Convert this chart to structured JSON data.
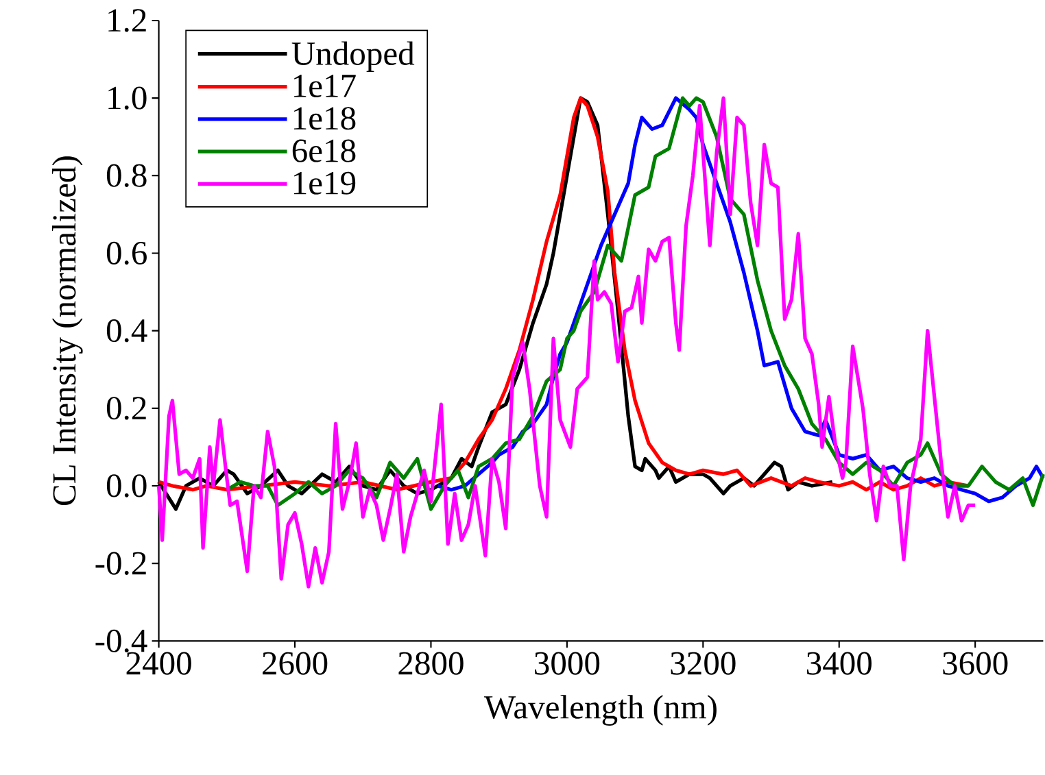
{
  "chart_data": {
    "type": "line",
    "xlabel": "Wavelength (nm)",
    "ylabel": "CL Intensity (normalized)",
    "xlim": [
      2400,
      3700
    ],
    "xticks": [
      2400,
      2600,
      2800,
      3000,
      3200,
      3400,
      3600
    ],
    "ylim": [
      -0.4,
      1.2
    ],
    "yticks": [
      {
        "value": -0.4,
        "label": "-0.4"
      },
      {
        "value": -0.2,
        "label": "-0.2"
      },
      {
        "value": 0,
        "label": "0.0"
      },
      {
        "value": 0.2,
        "label": "0.2"
      },
      {
        "value": 0.4,
        "label": "0.4"
      },
      {
        "value": 0.6,
        "label": "0.6"
      },
      {
        "value": 0.8,
        "label": "0.8"
      },
      {
        "value": 1.0,
        "label": "1.0"
      },
      {
        "value": 1.2,
        "label": "1.2"
      }
    ],
    "legend": "top left",
    "grid": false,
    "marker": "none",
    "line_style": "solid",
    "series": [
      {
        "name": "Undoped",
        "color": "#000000",
        "x": [
          2400,
          2425,
          2440,
          2460,
          2480,
          2500,
          2510,
          2530,
          2550,
          2575,
          2590,
          2610,
          2640,
          2660,
          2680,
          2700,
          2720,
          2740,
          2760,
          2780,
          2800,
          2830,
          2845,
          2860,
          2870,
          2890,
          2910,
          2930,
          2950,
          2970,
          2980,
          3000,
          3010,
          3020,
          3030,
          3045,
          3060,
          3075,
          3090,
          3100,
          3110,
          3115,
          3130,
          3135,
          3150,
          3160,
          3180,
          3200,
          3210,
          3230,
          3240,
          3260,
          3275,
          3290,
          3305,
          3315,
          3325,
          3340,
          3360,
          3390
        ],
        "values": [
          0.01,
          -0.06,
          0.0,
          0.02,
          0.0,
          0.04,
          0.03,
          -0.02,
          0.0,
          0.04,
          0.0,
          -0.02,
          0.03,
          0.01,
          0.05,
          0.0,
          -0.01,
          0.04,
          0.0,
          -0.02,
          -0.01,
          0.02,
          0.07,
          0.05,
          0.1,
          0.19,
          0.21,
          0.3,
          0.42,
          0.52,
          0.6,
          0.8,
          0.9,
          1.0,
          0.99,
          0.93,
          0.7,
          0.45,
          0.18,
          0.05,
          0.04,
          0.07,
          0.04,
          0.02,
          0.05,
          0.01,
          0.03,
          0.03,
          0.02,
          -0.02,
          0.0,
          0.02,
          0.0,
          0.03,
          0.06,
          0.05,
          -0.01,
          0.01,
          0.0,
          0.01
        ]
      },
      {
        "name": "1e17",
        "color": "#ff0000",
        "x": [
          2400,
          2420,
          2450,
          2470,
          2500,
          2550,
          2600,
          2650,
          2700,
          2750,
          2800,
          2830,
          2850,
          2870,
          2890,
          2910,
          2930,
          2950,
          2970,
          2990,
          3000,
          3010,
          3020,
          3030,
          3045,
          3060,
          3070,
          3085,
          3100,
          3120,
          3140,
          3160,
          3180,
          3200,
          3230,
          3250,
          3270,
          3300,
          3330,
          3350,
          3370,
          3400,
          3420,
          3440,
          3460,
          3480,
          3500,
          3520,
          3540,
          3560,
          3590
        ],
        "values": [
          0.01,
          0.0,
          -0.01,
          0.0,
          -0.01,
          0.0,
          0.01,
          0.0,
          0.01,
          -0.01,
          0.01,
          0.02,
          0.06,
          0.12,
          0.17,
          0.25,
          0.35,
          0.48,
          0.63,
          0.75,
          0.85,
          0.95,
          1.0,
          0.98,
          0.9,
          0.76,
          0.55,
          0.35,
          0.22,
          0.11,
          0.06,
          0.04,
          0.03,
          0.04,
          0.03,
          0.04,
          0.0,
          0.02,
          0.0,
          0.02,
          0.01,
          0.0,
          0.01,
          -0.01,
          0.01,
          -0.01,
          0.0,
          0.02,
          0.0,
          0.01,
          0.0
        ]
      },
      {
        "name": "1e18",
        "color": "#0000ff",
        "x": [
          2810,
          2830,
          2850,
          2870,
          2890,
          2900,
          2920,
          2935,
          2950,
          2970,
          2980,
          2990,
          3000,
          3010,
          3030,
          3050,
          3070,
          3090,
          3100,
          3110,
          3125,
          3140,
          3160,
          3180,
          3190,
          3200,
          3220,
          3240,
          3260,
          3280,
          3290,
          3310,
          3330,
          3350,
          3370,
          3380,
          3400,
          3420,
          3440,
          3460,
          3480,
          3500,
          3520,
          3540,
          3560,
          3580,
          3600,
          3620,
          3640,
          3660,
          3680,
          3690,
          3700
        ],
        "values": [
          0.0,
          -0.01,
          0.0,
          0.03,
          0.06,
          0.08,
          0.1,
          0.14,
          0.16,
          0.21,
          0.28,
          0.34,
          0.37,
          0.42,
          0.52,
          0.62,
          0.7,
          0.78,
          0.88,
          0.95,
          0.92,
          0.93,
          1.0,
          0.97,
          0.95,
          0.88,
          0.78,
          0.68,
          0.55,
          0.4,
          0.31,
          0.32,
          0.2,
          0.14,
          0.13,
          0.17,
          0.08,
          0.07,
          0.08,
          0.04,
          0.05,
          0.02,
          0.01,
          0.02,
          0.0,
          -0.01,
          -0.02,
          -0.04,
          -0.03,
          0.0,
          0.02,
          0.05,
          0.02
        ]
      },
      {
        "name": "6e18",
        "color": "#008000",
        "x": [
          2500,
          2520,
          2540,
          2560,
          2575,
          2600,
          2620,
          2640,
          2660,
          2680,
          2700,
          2720,
          2740,
          2760,
          2780,
          2800,
          2820,
          2840,
          2855,
          2870,
          2890,
          2910,
          2930,
          2950,
          2970,
          2990,
          3000,
          3010,
          3020,
          3040,
          3060,
          3080,
          3100,
          3120,
          3130,
          3150,
          3170,
          3180,
          3190,
          3200,
          3220,
          3240,
          3260,
          3280,
          3300,
          3320,
          3340,
          3360,
          3380,
          3400,
          3420,
          3440,
          3460,
          3480,
          3500,
          3520,
          3530,
          3550,
          3570,
          3590,
          3610,
          3630,
          3650,
          3670,
          3685,
          3700
        ],
        "values": [
          -0.01,
          0.01,
          0.0,
          0.0,
          -0.05,
          -0.02,
          0.01,
          -0.02,
          0.0,
          0.04,
          0.02,
          -0.03,
          0.06,
          0.02,
          0.07,
          -0.06,
          0.0,
          0.04,
          -0.03,
          0.05,
          0.07,
          0.11,
          0.12,
          0.18,
          0.27,
          0.3,
          0.38,
          0.4,
          0.45,
          0.5,
          0.62,
          0.58,
          0.75,
          0.77,
          0.85,
          0.87,
          1.0,
          0.98,
          1.0,
          0.99,
          0.9,
          0.74,
          0.7,
          0.53,
          0.4,
          0.31,
          0.25,
          0.16,
          0.12,
          0.06,
          0.03,
          0.06,
          0.04,
          0.0,
          0.06,
          0.08,
          0.11,
          0.03,
          0.0,
          0.0,
          0.05,
          0.01,
          -0.01,
          0.02,
          -0.05,
          0.03
        ]
      },
      {
        "name": "1e19",
        "color": "#ff00ff",
        "x": [
          2400,
          2405,
          2415,
          2420,
          2430,
          2440,
          2450,
          2460,
          2465,
          2475,
          2480,
          2490,
          2500,
          2505,
          2515,
          2530,
          2540,
          2550,
          2560,
          2570,
          2580,
          2590,
          2600,
          2610,
          2620,
          2630,
          2640,
          2650,
          2660,
          2670,
          2680,
          2690,
          2700,
          2710,
          2720,
          2730,
          2740,
          2750,
          2760,
          2770,
          2790,
          2800,
          2815,
          2825,
          2835,
          2845,
          2855,
          2865,
          2880,
          2890,
          2900,
          2910,
          2920,
          2935,
          2945,
          2960,
          2970,
          2980,
          2990,
          3005,
          3015,
          3030,
          3040,
          3045,
          3055,
          3065,
          3075,
          3085,
          3095,
          3105,
          3110,
          3120,
          3130,
          3140,
          3150,
          3160,
          3165,
          3175,
          3185,
          3195,
          3210,
          3220,
          3230,
          3240,
          3250,
          3260,
          3270,
          3280,
          3290,
          3300,
          3310,
          3320,
          3330,
          3340,
          3350,
          3360,
          3370,
          3375,
          3385,
          3395,
          3405,
          3410,
          3420,
          3435,
          3445,
          3455,
          3465,
          3475,
          3485,
          3495,
          3505,
          3520,
          3530,
          3540,
          3550,
          3560,
          3570,
          3580,
          3590,
          3600
        ],
        "values": [
          0.0,
          -0.14,
          0.18,
          0.22,
          0.03,
          0.04,
          0.02,
          0.07,
          -0.16,
          0.1,
          0.0,
          0.17,
          0.02,
          -0.05,
          -0.04,
          -0.22,
          0.0,
          -0.03,
          0.14,
          0.05,
          -0.24,
          -0.1,
          -0.07,
          -0.15,
          -0.26,
          -0.16,
          -0.25,
          -0.17,
          0.16,
          -0.06,
          0.01,
          0.11,
          -0.08,
          -0.01,
          -0.05,
          -0.14,
          -0.06,
          0.03,
          -0.17,
          -0.08,
          0.04,
          -0.04,
          0.21,
          -0.15,
          -0.02,
          -0.14,
          -0.1,
          0.0,
          -0.18,
          0.07,
          0.01,
          -0.11,
          0.28,
          0.37,
          0.25,
          0.0,
          -0.08,
          0.38,
          0.17,
          0.1,
          0.25,
          0.28,
          0.58,
          0.48,
          0.5,
          0.47,
          0.32,
          0.45,
          0.46,
          0.54,
          0.42,
          0.61,
          0.58,
          0.63,
          0.64,
          0.42,
          0.35,
          0.67,
          0.8,
          0.98,
          0.62,
          0.86,
          1.0,
          0.7,
          0.95,
          0.93,
          0.73,
          0.62,
          0.88,
          0.78,
          0.77,
          0.43,
          0.48,
          0.65,
          0.38,
          0.34,
          0.21,
          0.1,
          0.23,
          0.1,
          0.02,
          0.06,
          0.36,
          0.2,
          0.03,
          -0.09,
          0.05,
          0.0,
          0.0,
          -0.19,
          0.0,
          0.12,
          0.4,
          0.23,
          0.06,
          -0.08,
          0.0,
          -0.09,
          -0.05,
          -0.05
        ]
      }
    ]
  }
}
